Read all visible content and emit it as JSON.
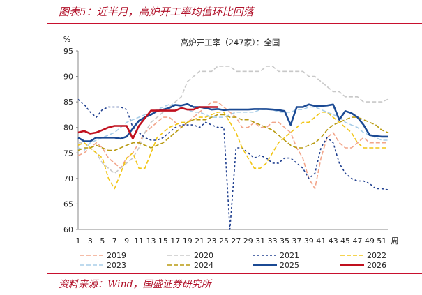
{
  "caption": "图表5：近半月，高炉开工率均值环比回落",
  "source": "资料来源：Wind，国盛证券研究所",
  "chart_data": {
    "type": "line",
    "title": "高炉开工率（247家）：全国",
    "ylabel": "%",
    "xlabel": "周",
    "ylim": [
      60,
      95
    ],
    "yticks": [
      60,
      65,
      70,
      75,
      80,
      85,
      90,
      95
    ],
    "xlim": [
      1,
      52
    ],
    "xticks": [
      1,
      3,
      5,
      7,
      9,
      11,
      13,
      15,
      17,
      19,
      21,
      23,
      25,
      27,
      29,
      31,
      33,
      35,
      37,
      39,
      41,
      43,
      45,
      47,
      49,
      51
    ],
    "grid": "none",
    "legend_position": "bottom",
    "series": [
      {
        "name": "2019",
        "color": "#f2a58a",
        "dash": "6,3",
        "width": 1.6,
        "values": [
          74.5,
          75,
          76,
          77,
          76,
          74,
          73,
          72,
          74,
          75,
          77,
          79,
          80,
          81,
          82,
          82,
          81,
          80,
          81,
          82,
          83,
          84,
          85,
          85,
          84,
          83,
          82,
          80,
          80,
          81,
          80,
          80,
          81,
          81,
          80,
          79,
          76,
          74,
          70,
          68,
          74,
          78,
          79,
          77,
          76,
          76,
          77,
          78,
          77,
          77,
          77,
          77
        ]
      },
      {
        "name": "2020",
        "color": "#c8c8c8",
        "dash": "6,3",
        "width": 1.6,
        "values": [
          77,
          77,
          76,
          75,
          73,
          72,
          71,
          72,
          73,
          74,
          76,
          79,
          81,
          82,
          83,
          84,
          85,
          86,
          89,
          90,
          91,
          91,
          91,
          92,
          92,
          92,
          91,
          91,
          91,
          91,
          91,
          92,
          92,
          91,
          91,
          91,
          91,
          91,
          90,
          90,
          89,
          88,
          87,
          87,
          86,
          86,
          86,
          85,
          85,
          85,
          85,
          85.5
        ]
      },
      {
        "name": "2021",
        "color": "#1f3f8f",
        "dash": "3,3",
        "width": 1.6,
        "values": [
          85.5,
          84.5,
          83,
          82,
          83.5,
          84,
          84,
          84,
          83.5,
          80,
          79,
          78,
          77.5,
          77.5,
          78,
          79,
          80,
          80.5,
          80.5,
          80.5,
          80,
          81,
          80.5,
          80,
          80,
          60,
          76,
          76,
          75,
          74,
          74.5,
          74,
          73,
          73,
          74,
          74,
          73,
          72,
          70,
          71,
          76,
          78,
          77,
          73,
          71,
          70,
          69.5,
          69.5,
          69,
          68,
          68,
          67.8
        ]
      },
      {
        "name": "2022",
        "color": "#f2c617",
        "dash": "6,3",
        "width": 1.6,
        "values": [
          76.5,
          77,
          76,
          75,
          74,
          70,
          68,
          71,
          74,
          75,
          72,
          72,
          75,
          78,
          79,
          80,
          80.5,
          81,
          81,
          81.5,
          82,
          82,
          82.5,
          83,
          83,
          81,
          79,
          76,
          74,
          72,
          72,
          73,
          75,
          77,
          78,
          79,
          80,
          81,
          81,
          82,
          83,
          83,
          82,
          81,
          80,
          79,
          77,
          76,
          76,
          76,
          76,
          76
        ]
      },
      {
        "name": "2023",
        "color": "#a8cde8",
        "dash": "6,3",
        "width": 1.6,
        "values": [
          76,
          75.5,
          77,
          77.5,
          78,
          78.5,
          79,
          80,
          81,
          81.5,
          82,
          82.5,
          83,
          83.5,
          84,
          84.5,
          84.5,
          84,
          83.5,
          83,
          83,
          82.5,
          82,
          82,
          82,
          82.5,
          83,
          83,
          83,
          83,
          83.5,
          83.5,
          83.5,
          83,
          83,
          83,
          83.5,
          83.5,
          84,
          84,
          83.5,
          83,
          82.5,
          82,
          81,
          80.5,
          80,
          79,
          78.5,
          78,
          77.5,
          77.5
        ]
      },
      {
        "name": "2024",
        "color": "#b89a10",
        "dash": "6,3",
        "width": 1.6,
        "values": [
          75.5,
          76,
          76,
          76.5,
          76,
          75.5,
          75.5,
          76,
          76.5,
          77,
          77,
          76.5,
          76,
          76.5,
          77,
          78,
          79,
          80,
          81,
          81.5,
          81.5,
          81.5,
          82,
          82.5,
          82.5,
          82,
          82,
          81.5,
          81.5,
          81,
          80.5,
          80,
          79.5,
          78.5,
          77.5,
          76.5,
          76,
          76,
          76.5,
          77,
          78,
          79.5,
          80.5,
          81,
          81.5,
          82,
          82,
          81.5,
          81,
          80.5,
          79.5,
          79
        ]
      },
      {
        "name": "2025",
        "color": "#1b4a94",
        "dash": "",
        "width": 2.6,
        "values": [
          78,
          77.3,
          77.3,
          78,
          78,
          78,
          78,
          77.8,
          78.2,
          79.8,
          81.3,
          82,
          82.5,
          83.2,
          83.5,
          83.8,
          84.4,
          84.3,
          84.6,
          84,
          84,
          83.8,
          83.5,
          83.6,
          83.4,
          83.5,
          83.5,
          83.5,
          83.5,
          83.6,
          83.6,
          83.6,
          83.5,
          83.4,
          83.2,
          80.5,
          84,
          84,
          84.5,
          84.2,
          84.2,
          84.3,
          84.5,
          81.5,
          83.2,
          82.8,
          82,
          80.5,
          78.5,
          78.3,
          78.2,
          78.2
        ]
      },
      {
        "name": "2026",
        "color": "#c0101e",
        "dash": "",
        "width": 2.6,
        "values": [
          79,
          79.3,
          78.8,
          79,
          79.5,
          80,
          80.3,
          80.3,
          80.3,
          77.8,
          80.3,
          81.8,
          83.3,
          83.3,
          83.3,
          83.3,
          83.3,
          83.8,
          83.5,
          83.5,
          84,
          84,
          84,
          84
        ]
      }
    ]
  }
}
